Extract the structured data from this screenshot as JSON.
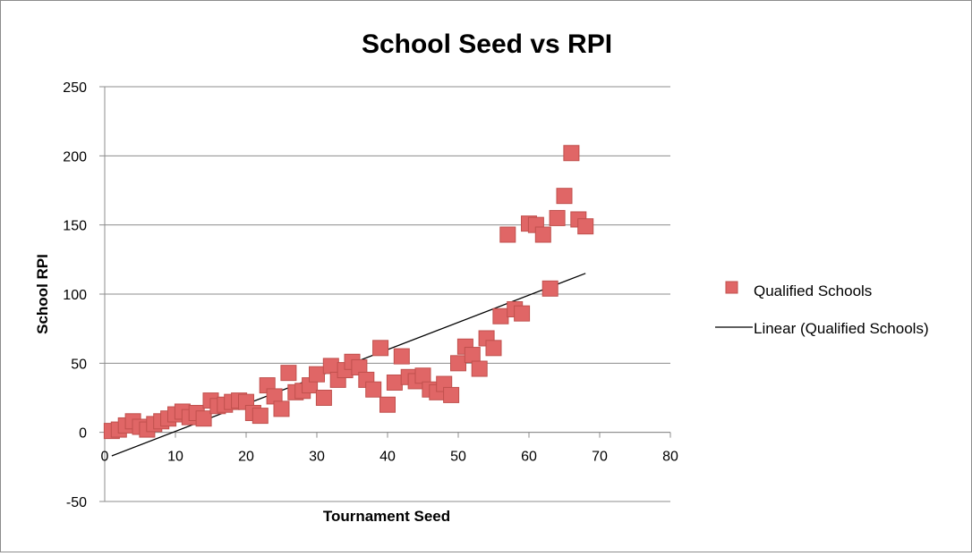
{
  "chart_data": {
    "type": "scatter",
    "title": "School Seed vs RPI",
    "xlabel": "Tournament Seed",
    "ylabel": "School RPI",
    "xlim": [
      0,
      80
    ],
    "ylim": [
      -50,
      250
    ],
    "xticks": [
      0,
      10,
      20,
      30,
      40,
      50,
      60,
      70,
      80
    ],
    "yticks": [
      -50,
      0,
      50,
      100,
      150,
      200,
      250
    ],
    "grid": "horizontal",
    "legend_position": "right",
    "series": [
      {
        "name": "Qualified Schools",
        "marker": "square",
        "color": "#e06666",
        "points": [
          [
            1,
            1
          ],
          [
            2,
            2
          ],
          [
            3,
            5
          ],
          [
            4,
            8
          ],
          [
            5,
            4
          ],
          [
            6,
            2
          ],
          [
            7,
            6
          ],
          [
            8,
            8
          ],
          [
            9,
            10
          ],
          [
            10,
            13
          ],
          [
            11,
            15
          ],
          [
            12,
            11
          ],
          [
            13,
            14
          ],
          [
            14,
            10
          ],
          [
            15,
            23
          ],
          [
            16,
            19
          ],
          [
            17,
            20
          ],
          [
            18,
            22
          ],
          [
            19,
            23
          ],
          [
            20,
            22
          ],
          [
            21,
            14
          ],
          [
            22,
            12
          ],
          [
            23,
            34
          ],
          [
            24,
            26
          ],
          [
            25,
            17
          ],
          [
            26,
            43
          ],
          [
            27,
            29
          ],
          [
            28,
            30
          ],
          [
            29,
            34
          ],
          [
            30,
            42
          ],
          [
            31,
            25
          ],
          [
            32,
            48
          ],
          [
            33,
            38
          ],
          [
            34,
            45
          ],
          [
            35,
            51
          ],
          [
            36,
            47
          ],
          [
            37,
            38
          ],
          [
            38,
            31
          ],
          [
            39,
            61
          ],
          [
            40,
            20
          ],
          [
            41,
            36
          ],
          [
            42,
            55
          ],
          [
            43,
            40
          ],
          [
            44,
            37
          ],
          [
            45,
            41
          ],
          [
            46,
            31
          ],
          [
            47,
            29
          ],
          [
            48,
            35
          ],
          [
            49,
            27
          ],
          [
            50,
            50
          ],
          [
            51,
            62
          ],
          [
            52,
            56
          ],
          [
            53,
            46
          ],
          [
            54,
            68
          ],
          [
            55,
            61
          ],
          [
            56,
            84
          ],
          [
            57,
            143
          ],
          [
            58,
            89
          ],
          [
            59,
            86
          ],
          [
            60,
            151
          ],
          [
            61,
            150
          ],
          [
            62,
            143
          ],
          [
            63,
            104
          ],
          [
            64,
            155
          ],
          [
            65,
            171
          ],
          [
            66,
            202
          ],
          [
            67,
            154
          ],
          [
            68,
            149
          ]
        ]
      },
      {
        "name": "Linear (Qualified Schools)",
        "type": "line",
        "color": "#000000",
        "points": [
          [
            1,
            -17
          ],
          [
            68,
            115
          ]
        ]
      }
    ]
  }
}
